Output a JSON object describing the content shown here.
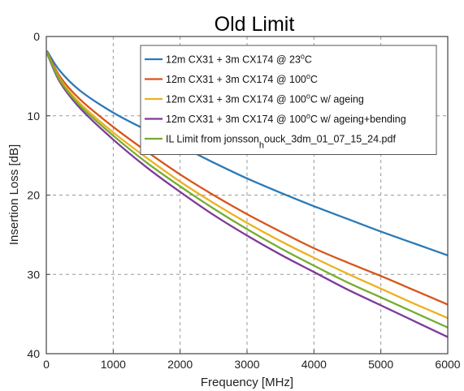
{
  "chart_data": {
    "type": "line",
    "title": "Old Limit",
    "xlabel": "Frequency [MHz]",
    "ylabel": "Insertion Loss [dB]",
    "xlim": [
      0,
      6000
    ],
    "ylim": [
      0,
      40
    ],
    "y_reversed": true,
    "grid": true,
    "legend_position": "top-right",
    "x_ticks": [
      "0",
      "1000",
      "2000",
      "3000",
      "4000",
      "5000",
      "6000"
    ],
    "y_ticks": [
      "0",
      "10",
      "20",
      "30",
      "40"
    ],
    "series": [
      {
        "name": "12m CX31 + 3m CX174 @ 23",
        "name_sup": "o",
        "name_suffix": "C",
        "color": "#2a7ab8",
        "x": [
          10,
          200,
          500,
          1000,
          1500,
          2000,
          2500,
          3000,
          3500,
          4000,
          4500,
          5000,
          5500,
          6000
        ],
        "y": [
          1.8,
          4.3,
          6.8,
          9.6,
          11.8,
          13.8,
          15.9,
          17.9,
          19.7,
          21.4,
          23.0,
          24.6,
          26.1,
          27.6
        ]
      },
      {
        "name": "12m CX31 + 3m CX174 @ 100",
        "name_sup": "o",
        "name_suffix": "C",
        "color": "#d9541a",
        "x": [
          10,
          200,
          500,
          1000,
          1500,
          2000,
          2500,
          3000,
          3500,
          4000,
          4500,
          5000,
          5500,
          6000
        ],
        "y": [
          1.9,
          5.0,
          7.9,
          11.4,
          14.5,
          17.4,
          20.0,
          22.4,
          24.6,
          26.7,
          28.5,
          30.2,
          32.0,
          33.8
        ]
      },
      {
        "name": "12m CX31 + 3m CX174 @ 100",
        "name_sup": "o",
        "name_suffix": "C w/ ageing",
        "color": "#edb120",
        "x": [
          10,
          200,
          500,
          1000,
          1500,
          2000,
          2500,
          3000,
          3500,
          4000,
          4500,
          5000,
          5500,
          6000
        ],
        "y": [
          2.0,
          5.3,
          8.4,
          12.1,
          15.3,
          18.3,
          21.0,
          23.5,
          25.8,
          27.9,
          29.9,
          31.8,
          33.7,
          35.5
        ]
      },
      {
        "name": "12m CX31 + 3m CX174 @ 100",
        "name_sup": "o",
        "name_suffix": "C w/ ageing+bending",
        "color": "#7e3a9a",
        "x": [
          10,
          200,
          500,
          1000,
          1500,
          2000,
          2500,
          3000,
          3500,
          4000,
          4500,
          5000,
          5500,
          6000
        ],
        "y": [
          2.1,
          5.7,
          9.0,
          13.0,
          16.5,
          19.6,
          22.5,
          25.1,
          27.5,
          29.7,
          31.9,
          33.9,
          35.9,
          37.9
        ]
      },
      {
        "name": "IL Limit from jonsson",
        "name_sub": "h",
        "name_suffix": "ouck_3dm_01_07_15_24.pdf",
        "color": "#77ac30",
        "x": [
          10,
          200,
          500,
          1000,
          1500,
          2000,
          2500,
          3000,
          3500,
          4000,
          4500,
          5000,
          5500,
          6000
        ],
        "y": [
          2.0,
          5.5,
          8.7,
          12.5,
          15.9,
          18.9,
          21.7,
          24.3,
          26.7,
          28.9,
          31.0,
          32.9,
          34.8,
          36.7
        ]
      }
    ]
  }
}
